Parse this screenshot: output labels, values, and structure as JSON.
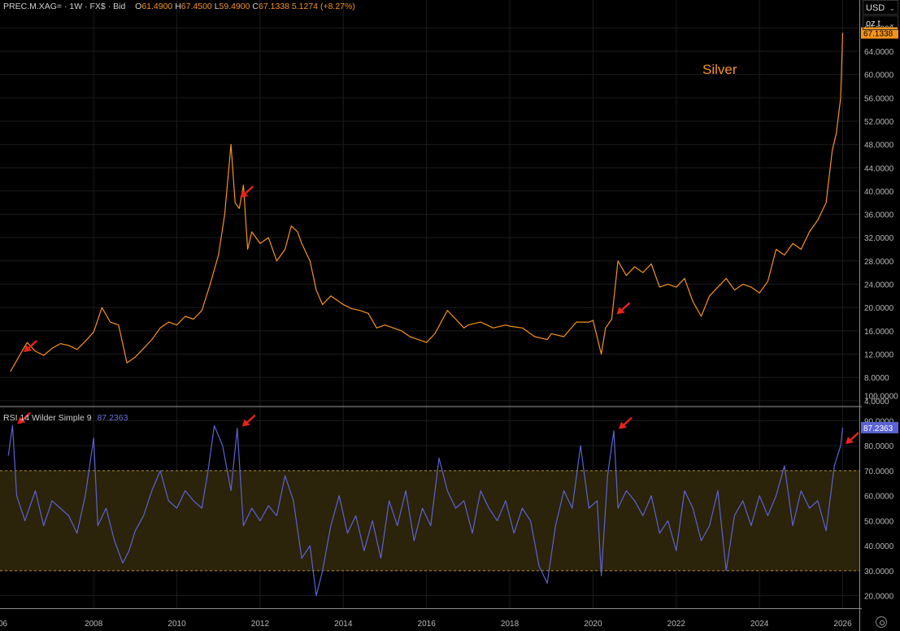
{
  "header": {
    "symbol": "PREC.M.XAG=",
    "sep1": "·",
    "interval": "1W",
    "sep2": "·",
    "source": "FX$",
    "sep3": "·",
    "side": "Bid",
    "open_label": "O",
    "open": "61.4900",
    "high_label": "H",
    "high": "67.4500",
    "low_label": "L",
    "low": "59.4900",
    "close_label": "C",
    "close": "67.1338",
    "change": "5.1274",
    "change_pct": "(+8.27%)"
  },
  "rsi_header": {
    "label": "RSI 14 Wilder Simple 9",
    "value": "87.2363"
  },
  "currency": "USD",
  "unit": "oz t",
  "annotation": "Silver",
  "colors": {
    "price": "#f7931a",
    "rsi": "#5b63d3",
    "background": "#000000",
    "grid": "#1c1c1c",
    "band": "#2b230a",
    "band_line": "#b48a2e",
    "arrow": "#e8231c"
  },
  "chart_data": [
    {
      "type": "line",
      "title": "",
      "series": [
        {
          "name": "Silver",
          "x": [
            2006.0,
            2006.2,
            2006.4,
            2006.6,
            2006.8,
            2007.0,
            2007.2,
            2007.4,
            2007.6,
            2007.8,
            2008.0,
            2008.2,
            2008.4,
            2008.6,
            2008.8,
            2009.0,
            2009.2,
            2009.4,
            2009.6,
            2009.8,
            2010.0,
            2010.2,
            2010.4,
            2010.6,
            2010.8,
            2011.0,
            2011.15,
            2011.3,
            2011.4,
            2011.5,
            2011.6,
            2011.7,
            2011.8,
            2012.0,
            2012.2,
            2012.4,
            2012.6,
            2012.75,
            2012.9,
            2013.0,
            2013.2,
            2013.35,
            2013.5,
            2013.7,
            2013.9,
            2014.0,
            2014.2,
            2014.4,
            2014.6,
            2014.8,
            2015.0,
            2015.2,
            2015.4,
            2015.6,
            2015.8,
            2016.0,
            2016.2,
            2016.5,
            2016.7,
            2016.9,
            2017.0,
            2017.3,
            2017.6,
            2017.9,
            2018.0,
            2018.3,
            2018.6,
            2018.9,
            2019.0,
            2019.3,
            2019.6,
            2019.9,
            2020.0,
            2020.2,
            2020.3,
            2020.45,
            2020.6,
            2020.8,
            2021.0,
            2021.2,
            2021.4,
            2021.6,
            2021.8,
            2022.0,
            2022.2,
            2022.4,
            2022.6,
            2022.8,
            2023.0,
            2023.2,
            2023.4,
            2023.6,
            2023.8,
            2024.0,
            2024.2,
            2024.4,
            2024.6,
            2024.8,
            2025.0,
            2025.2,
            2025.4,
            2025.6,
            2025.75,
            2025.85,
            2025.95,
            2026.0
          ],
          "values": [
            9.0,
            11.5,
            14.0,
            12.5,
            11.8,
            13.0,
            13.8,
            13.5,
            12.8,
            14.2,
            15.8,
            20.0,
            17.5,
            17.0,
            10.5,
            11.5,
            13.0,
            14.5,
            16.5,
            17.5,
            17.0,
            18.5,
            18.0,
            19.5,
            24.0,
            29.0,
            36.0,
            48.0,
            38.0,
            37.0,
            41.0,
            30.0,
            33.0,
            31.0,
            32.0,
            28.0,
            30.0,
            34.0,
            33.0,
            31.0,
            28.0,
            23.0,
            20.5,
            22.0,
            21.0,
            20.5,
            19.8,
            19.5,
            19.0,
            16.5,
            17.0,
            16.5,
            16.0,
            15.0,
            14.5,
            14.0,
            15.5,
            19.5,
            18.0,
            16.5,
            17.0,
            17.5,
            16.5,
            17.0,
            16.8,
            16.5,
            15.0,
            14.5,
            15.5,
            15.0,
            17.5,
            17.5,
            17.8,
            12.0,
            16.5,
            18.0,
            28.0,
            25.5,
            27.0,
            26.0,
            27.5,
            23.5,
            24.0,
            23.5,
            25.0,
            21.0,
            18.5,
            22.0,
            23.5,
            25.0,
            23.0,
            24.0,
            23.5,
            22.5,
            24.5,
            30.0,
            29.0,
            31.0,
            30.0,
            33.0,
            35.0,
            38.0,
            47.0,
            50.0,
            56.0,
            67.1338
          ]
        }
      ],
      "ylim": [
        3.0,
        70.0
      ],
      "y_ticks": [
        "4.0000",
        "8.0000",
        "12.0000",
        "16.0000",
        "20.0000",
        "24.0000",
        "28.0000",
        "32.0000",
        "36.0000",
        "40.0000",
        "44.0000",
        "48.0000",
        "52.0000",
        "56.0000",
        "60.0000",
        "64.0000",
        "68.0000"
      ],
      "last_value_label": "67.1338",
      "arrows_at_x": [
        2006.2,
        2011.4,
        2020.45
      ]
    },
    {
      "type": "line",
      "title": "RSI 14 Wilder Simple 9",
      "series": [
        {
          "name": "RSI",
          "x": [
            2005.95,
            2006.05,
            2006.15,
            2006.35,
            2006.6,
            2006.8,
            2007.0,
            2007.2,
            2007.4,
            2007.6,
            2007.8,
            2008.0,
            2008.1,
            2008.3,
            2008.5,
            2008.7,
            2008.85,
            2009.0,
            2009.2,
            2009.4,
            2009.6,
            2009.8,
            2010.0,
            2010.2,
            2010.4,
            2010.6,
            2010.75,
            2010.9,
            2011.1,
            2011.3,
            2011.45,
            2011.6,
            2011.8,
            2012.0,
            2012.2,
            2012.4,
            2012.6,
            2012.8,
            2013.0,
            2013.2,
            2013.35,
            2013.5,
            2013.7,
            2013.9,
            2014.1,
            2014.3,
            2014.5,
            2014.7,
            2014.9,
            2015.1,
            2015.3,
            2015.5,
            2015.7,
            2015.9,
            2016.1,
            2016.3,
            2016.5,
            2016.7,
            2016.9,
            2017.1,
            2017.3,
            2017.5,
            2017.7,
            2017.9,
            2018.1,
            2018.3,
            2018.5,
            2018.7,
            2018.9,
            2019.1,
            2019.3,
            2019.5,
            2019.7,
            2019.9,
            2020.1,
            2020.2,
            2020.35,
            2020.5,
            2020.6,
            2020.8,
            2021.0,
            2021.2,
            2021.4,
            2021.6,
            2021.8,
            2022.0,
            2022.2,
            2022.4,
            2022.6,
            2022.8,
            2023.0,
            2023.2,
            2023.4,
            2023.6,
            2023.8,
            2024.0,
            2024.2,
            2024.4,
            2024.6,
            2024.8,
            2025.0,
            2025.2,
            2025.4,
            2025.6,
            2025.8,
            2025.95,
            2026.0
          ],
          "values": [
            76,
            88,
            60,
            50,
            62,
            48,
            58,
            55,
            52,
            45,
            60,
            83,
            48,
            55,
            42,
            33,
            38,
            46,
            52,
            62,
            70,
            58,
            55,
            62,
            58,
            55,
            70,
            88,
            80,
            62,
            87,
            48,
            55,
            50,
            56,
            52,
            68,
            58,
            35,
            40,
            20,
            30,
            48,
            60,
            45,
            52,
            38,
            50,
            35,
            58,
            48,
            62,
            42,
            55,
            48,
            75,
            62,
            55,
            58,
            45,
            62,
            55,
            50,
            58,
            45,
            55,
            50,
            32,
            25,
            48,
            62,
            55,
            80,
            55,
            58,
            28,
            68,
            86,
            55,
            62,
            58,
            52,
            60,
            45,
            50,
            38,
            62,
            55,
            42,
            48,
            62,
            30,
            52,
            58,
            48,
            60,
            52,
            60,
            72,
            48,
            62,
            55,
            58,
            46,
            72,
            80,
            87.2363
          ],
          "color": "#5b63d3"
        }
      ],
      "ylim": [
        15,
        95
      ],
      "y_ticks": [
        "20.0000",
        "30.0000",
        "40.0000",
        "50.0000",
        "60.0000",
        "70.0000",
        "80.0000",
        "90.0000",
        "100.0000"
      ],
      "band": [
        30,
        70
      ],
      "last_value_label": "87.2363",
      "arrows_at_x": [
        2006.05,
        2011.45,
        2020.5,
        2025.95
      ]
    }
  ],
  "x_axis": {
    "ticks": [
      "2008",
      "2010",
      "2012",
      "2014",
      "2016",
      "2018",
      "2020",
      "2022",
      "2024",
      "2026"
    ],
    "tick_values": [
      2008,
      2010,
      2012,
      2014,
      2016,
      2018,
      2020,
      2022,
      2024,
      2026
    ],
    "first_label": "06",
    "xlim": [
      2005.75,
      2026.4
    ]
  }
}
